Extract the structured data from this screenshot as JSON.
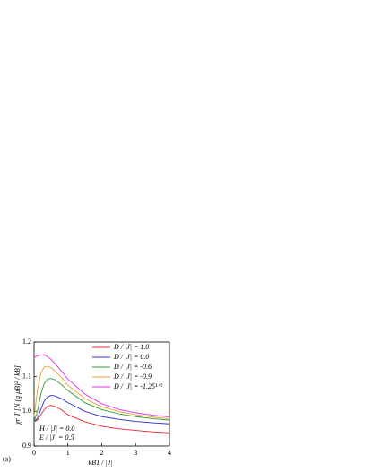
{
  "chart_data": {
    "type": "line",
    "x": [
      0,
      0.1,
      0.2,
      0.3,
      0.4,
      0.5,
      0.6,
      0.8,
      1,
      1.5,
      2,
      2.5,
      3,
      3.5,
      4
    ],
    "series": [
      {
        "name": "D / |J| = 1.0",
        "color": "#e8262a",
        "values": [
          0.97,
          0.975,
          0.99,
          1.005,
          1.015,
          1.017,
          1.015,
          1.005,
          0.99,
          0.97,
          0.957,
          0.95,
          0.945,
          0.941,
          0.938
        ]
      },
      {
        "name": "D / |J| = 0.0",
        "color": "#2b2bd8",
        "values": [
          0.97,
          0.98,
          1.005,
          1.03,
          1.042,
          1.046,
          1.045,
          1.037,
          1.025,
          1.0,
          0.985,
          0.977,
          0.971,
          0.967,
          0.964
        ]
      },
      {
        "name": "D / |J| = -0.6",
        "color": "#2e9a2e",
        "values": [
          0.97,
          1.0,
          1.05,
          1.08,
          1.093,
          1.095,
          1.092,
          1.078,
          1.06,
          1.025,
          1.005,
          0.993,
          0.985,
          0.979,
          0.975
        ]
      },
      {
        "name": "D / |J| = -0.9",
        "color": "#e8a030",
        "values": [
          0.985,
          1.06,
          1.11,
          1.128,
          1.13,
          1.126,
          1.118,
          1.098,
          1.075,
          1.037,
          1.013,
          1.0,
          0.99,
          0.984,
          0.979
        ]
      },
      {
        "name": "D / |J| = -1.25¹ᐟ²",
        "color": "#e030e0",
        "values": [
          1.155,
          1.16,
          1.163,
          1.163,
          1.158,
          1.15,
          1.14,
          1.117,
          1.093,
          1.05,
          1.022,
          1.006,
          0.996,
          0.989,
          0.984
        ]
      }
    ],
    "xlabel": "kBT / |J|",
    "ylabel": "χr T [N (g μB)² / kB]",
    "annotations": [
      "H / |J| = 0.0",
      "E / |J| = 0.5"
    ],
    "panel_label": "(a)",
    "xlim": [
      0,
      4
    ],
    "xticks": [
      0,
      1,
      2,
      3,
      4
    ],
    "ylim": [
      0.9,
      1.2
    ],
    "yticks": [
      {
        "value": 0.9,
        "label": "0.9"
      },
      {
        "value": 1.0,
        "label": "1.0"
      },
      {
        "value": 1.1,
        "label": "1.1"
      },
      {
        "value": 1.2,
        "label": "1.2"
      }
    ],
    "legend": "upper right"
  }
}
